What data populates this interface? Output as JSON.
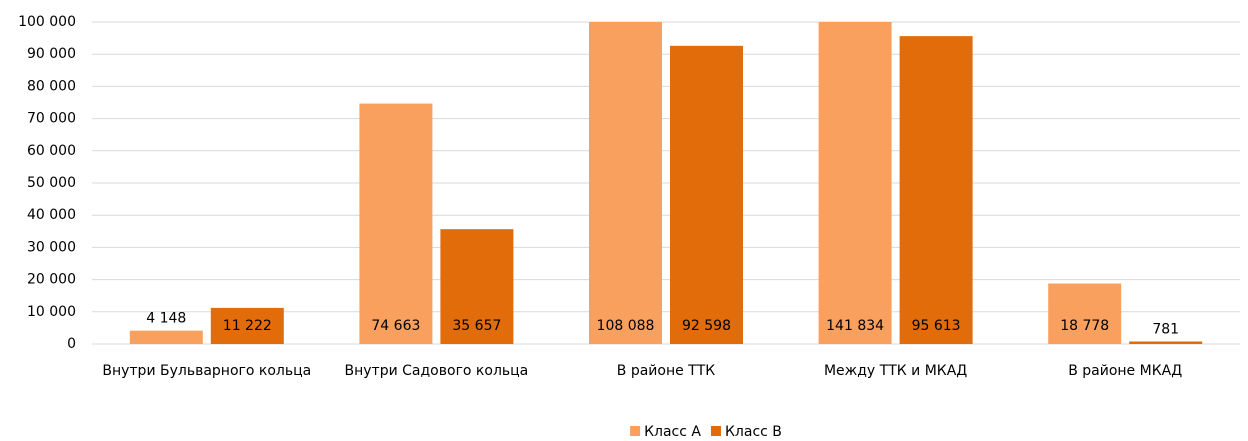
{
  "chart_data": {
    "type": "bar",
    "categories": [
      "Внутри Бульварного кольца",
      "Внутри Садового кольца",
      "В районе ТТК",
      "Между ТТК и МКАД",
      "В районе МКАД"
    ],
    "series": [
      {
        "name": "Класс А",
        "color": "#F9A05E",
        "values": [
          4148,
          74663,
          108088,
          141834,
          18778
        ],
        "value_labels": [
          "4 148",
          "74 663",
          "108 088",
          "141 834",
          "18 778"
        ]
      },
      {
        "name": "Класс В",
        "color": "#E36C0A",
        "values": [
          11222,
          35657,
          92598,
          95613,
          781
        ],
        "value_labels": [
          "11 222",
          "35 657",
          "92 598",
          "95 613",
          "781"
        ]
      }
    ],
    "ylim": [
      0,
      100000
    ],
    "yticks": [
      0,
      {
        "value": 10000,
        "label": "10 000"
      },
      {
        "value": 20000,
        "label": "20 000"
      },
      {
        "value": 30000,
        "label": "30 000"
      },
      {
        "value": 40000,
        "label": "40 000"
      },
      {
        "value": 50000,
        "label": "50 000"
      },
      {
        "value": 60000,
        "label": "60 000"
      },
      {
        "value": 70000,
        "label": "70 000"
      },
      {
        "value": 80000,
        "label": "80 000"
      },
      {
        "value": 90000,
        "label": "90 000"
      },
      {
        "value": 100000,
        "label": "100 000"
      }
    ],
    "grid": true,
    "legend": "bottom"
  }
}
